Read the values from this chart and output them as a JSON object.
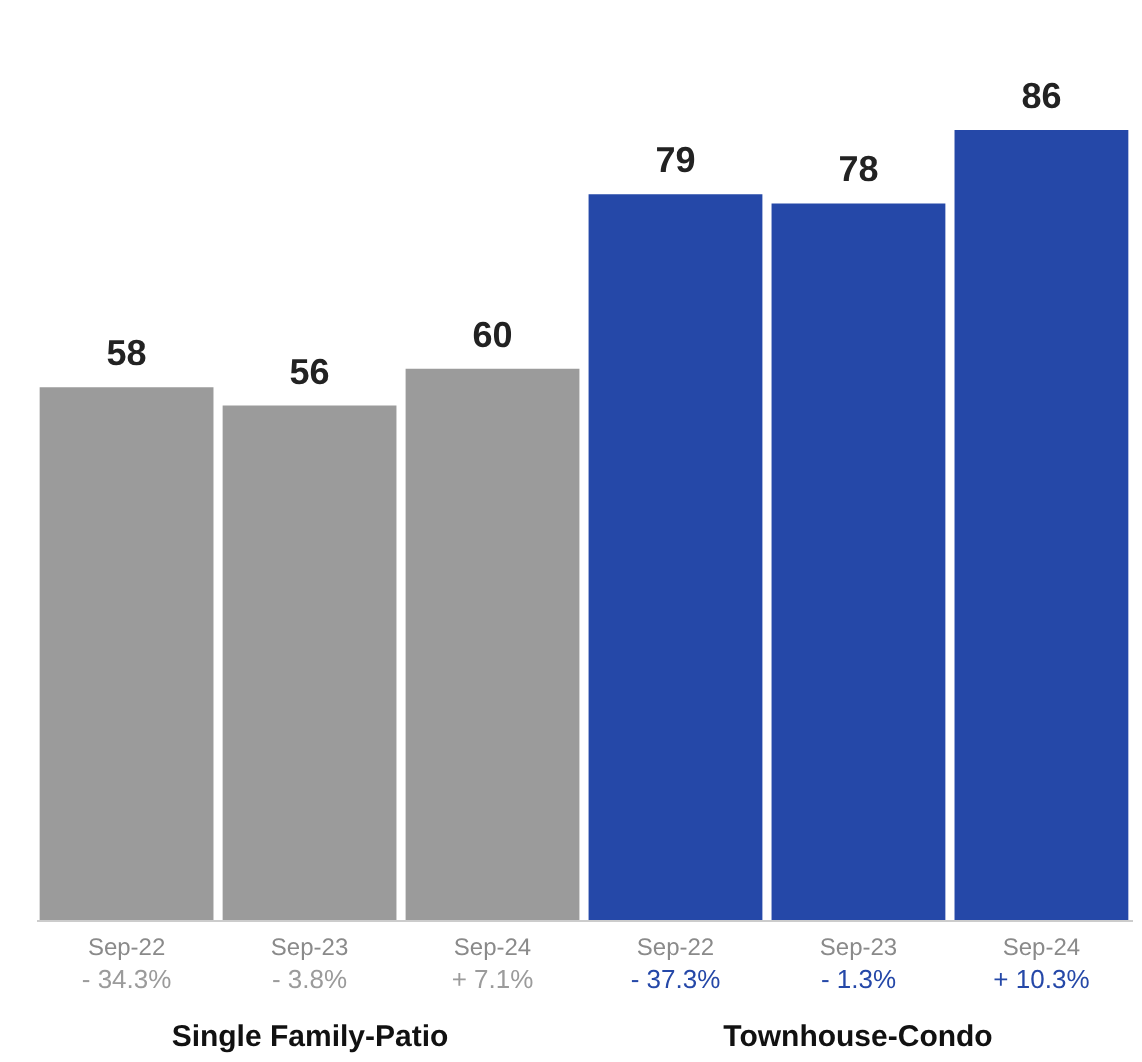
{
  "chart_data": {
    "type": "bar",
    "categories": [
      "Sep-22",
      "Sep-23",
      "Sep-24",
      "Sep-22",
      "Sep-23",
      "Sep-24"
    ],
    "values": [
      58,
      56,
      60,
      79,
      78,
      86
    ],
    "colors": [
      "#9b9b9b",
      "#9b9b9b",
      "#9b9b9b",
      "#2548a8",
      "#2548a8",
      "#2548a8"
    ],
    "data_labels": true,
    "annotations": [
      "- 34.3%",
      "- 3.8%",
      "+ 7.1%",
      "- 37.3%",
      "- 1.3%",
      "+ 10.3%",
      "Single Family-Patio",
      "Townhouse-Condo"
    ]
  }
}
